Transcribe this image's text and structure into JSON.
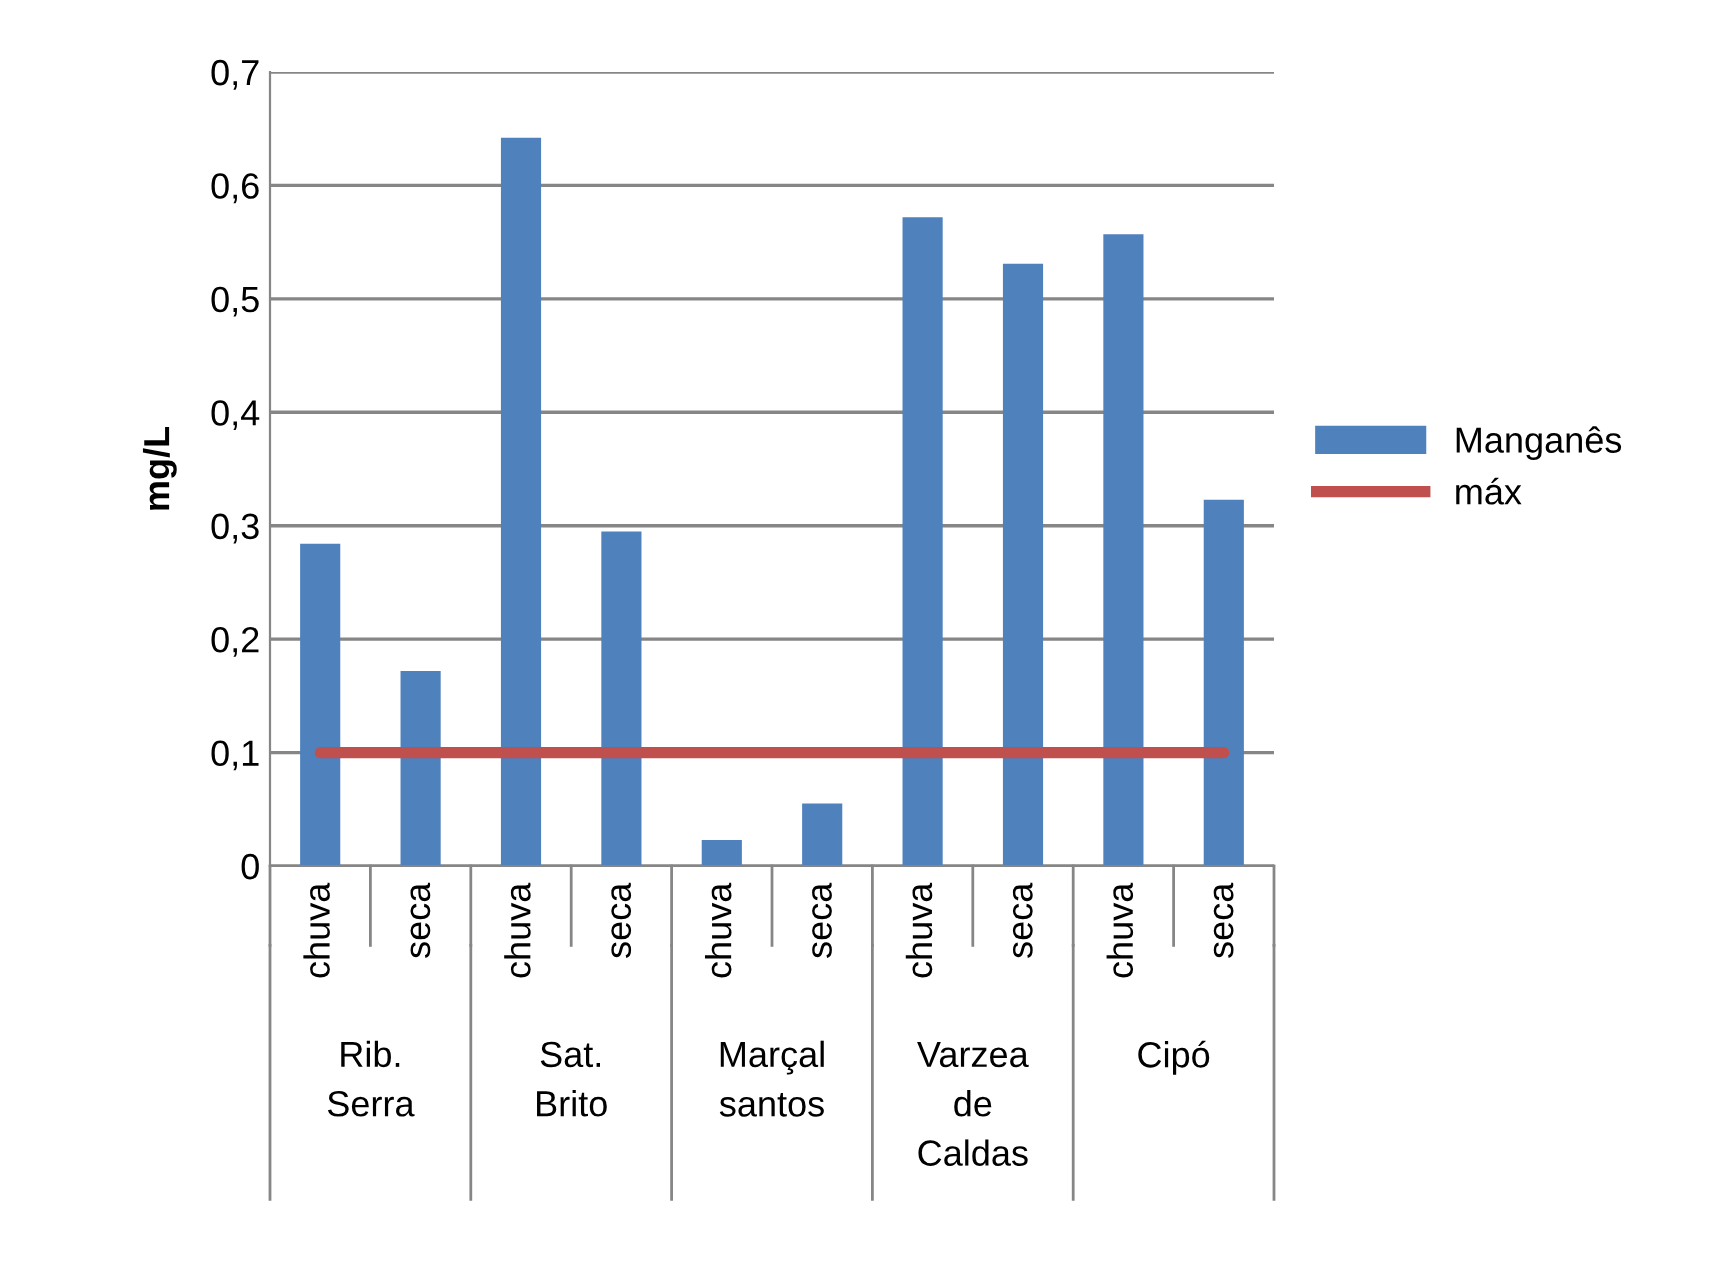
{
  "chart_data": {
    "type": "bar",
    "ylabel": "mg/L",
    "categories": [
      "chuva",
      "seca",
      "chuva",
      "seca",
      "chuva",
      "seca",
      "chuva",
      "seca",
      "chuva",
      "seca"
    ],
    "series": [
      {
        "name": "Manganês",
        "color": "#4f81bd",
        "values": [
          0.284,
          0.172,
          0.642,
          0.295,
          0.023,
          0.055,
          0.572,
          0.531,
          0.557,
          0.323
        ]
      },
      {
        "name": "máx",
        "type": "line",
        "color": "#c0504d",
        "values": [
          0.1,
          0.1,
          0.1,
          0.1,
          0.1,
          0.1,
          0.1,
          0.1,
          0.1,
          0.1
        ]
      }
    ],
    "annotations": [
      "Rib.\nSerra",
      "Sat.\nBrito",
      "Marçal\nsantos",
      "Varzea\nde\nCaldas",
      "Cipó"
    ],
    "ylim": [
      0,
      0.7
    ],
    "yticks": [
      {
        "value": 0,
        "label": "0"
      },
      {
        "value": 0.1,
        "label": "0,1"
      },
      {
        "value": 0.2,
        "label": "0,2"
      },
      {
        "value": 0.3,
        "label": "0,3"
      },
      {
        "value": 0.4,
        "label": "0,4"
      },
      {
        "value": 0.5,
        "label": "0,5"
      },
      {
        "value": 0.6,
        "label": "0,6"
      },
      {
        "value": 0.7,
        "label": "0,7"
      }
    ],
    "grid": "y",
    "legend": "right",
    "marker": "none"
  }
}
